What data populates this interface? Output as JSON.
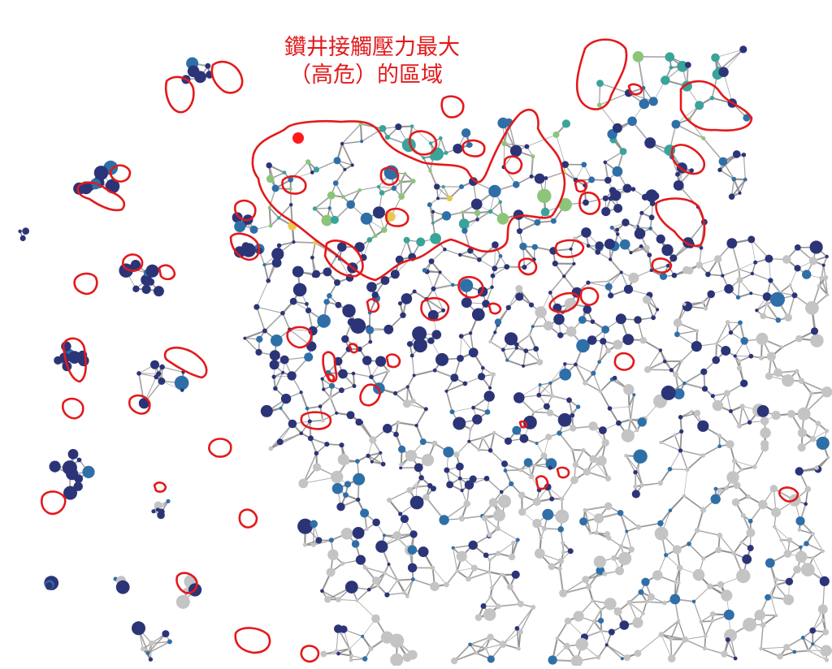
{
  "annotation": {
    "line1": "鑽井接觸壓力最大",
    "line2": "（高危）的區域"
  },
  "colors": {
    "low": "#2c3478",
    "mid": "#2f6fa8",
    "teal": "#3aa39a",
    "green": "#8cc57a",
    "yellow": "#e8c84f",
    "critical": "#ff1a1a",
    "inactive": "#c4c4c4",
    "edge": "#8a8a8a",
    "highlight_outline": "#e3191b"
  },
  "legend_semantics": {
    "node_color_scale": [
      "low",
      "mid",
      "teal",
      "green",
      "yellow",
      "critical"
    ],
    "inactive_nodes": "inactive",
    "outline_meaning": "highlight_outline"
  }
}
